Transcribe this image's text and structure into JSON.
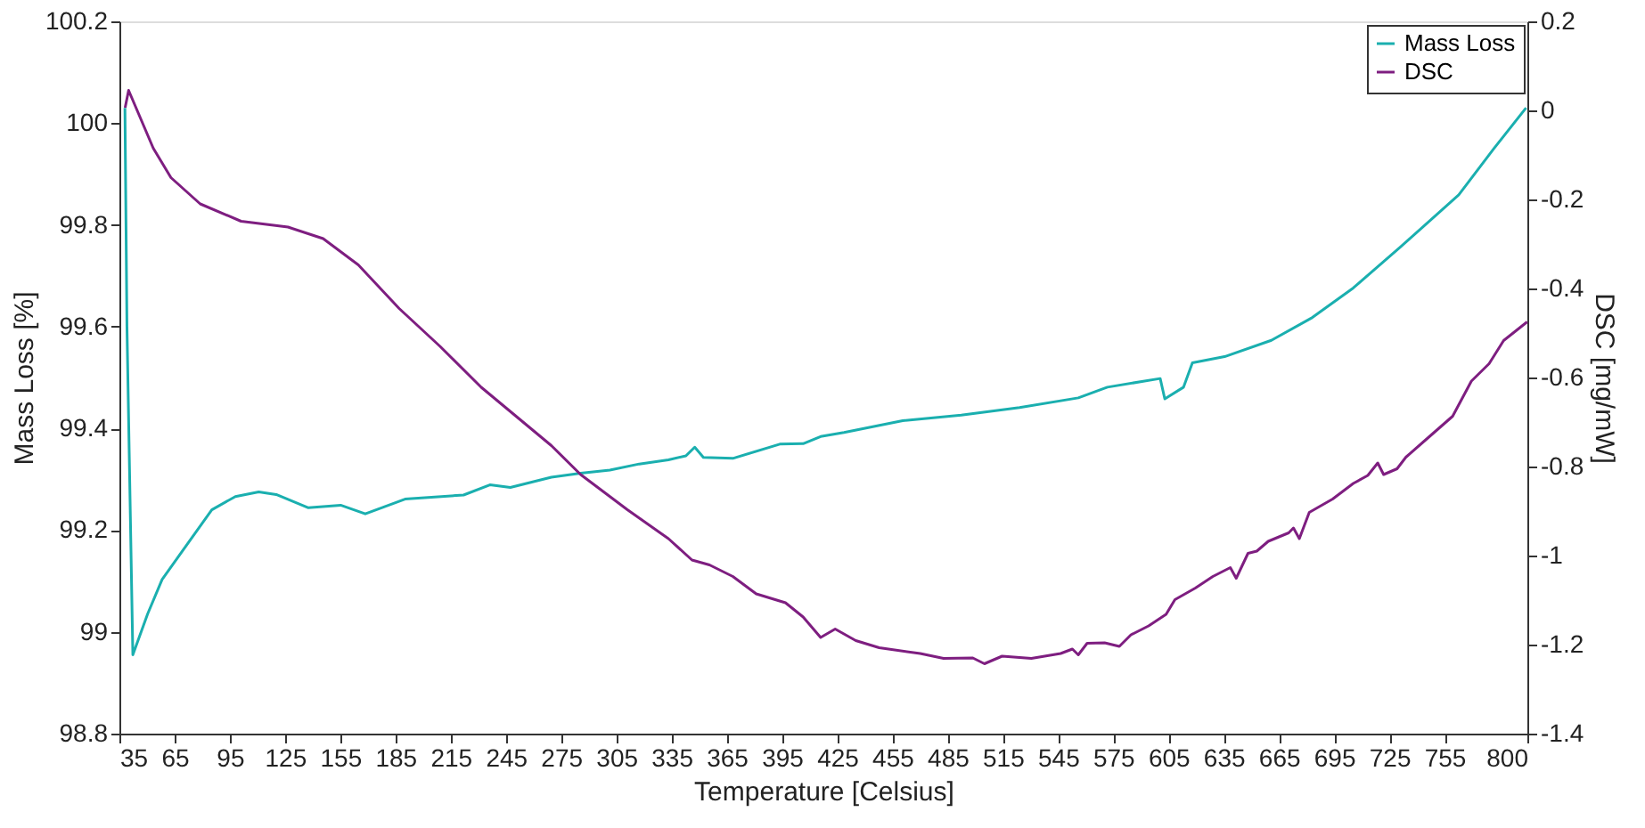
{
  "chart_data": {
    "type": "line",
    "xlabel": "Temperature [Celsius]",
    "ylabel": "Mass Loss [%]",
    "y2label": "DSC [mg/mW]",
    "xlim": [
      35,
      800
    ],
    "xticks": [
      35,
      65,
      95,
      125,
      155,
      185,
      215,
      245,
      275,
      305,
      335,
      365,
      395,
      425,
      455,
      485,
      515,
      545,
      575,
      605,
      635,
      665,
      695,
      725,
      755,
      800
    ],
    "ylim": [
      98.8,
      100.2
    ],
    "yticks": [
      98.8,
      99,
      99.2,
      99.4,
      99.6,
      99.8,
      100,
      100.2
    ],
    "y2lim": [
      -1.4,
      0.2
    ],
    "y2ticks": [
      -1.4,
      -1.2,
      -1,
      -0.8,
      -0.6,
      -0.4,
      -0.2,
      0,
      0.2
    ],
    "legend": "top right",
    "series": [
      {
        "name": "Mass Loss",
        "color": "#1aafaf",
        "axis": "y",
        "x": [
          38,
          39.1,
          42.3,
          50.3,
          58.2,
          69.4,
          85.2,
          98,
          110.7,
          120.2,
          137.7,
          155.2,
          168.6,
          190.2,
          222,
          236.3,
          247.4,
          269.7,
          285.6,
          301.5,
          317.4,
          333.3,
          342.8,
          347.6,
          352.3,
          368.3,
          393.8,
          406.5,
          416,
          428.7,
          460.6,
          492.4,
          524.1,
          556,
          571.8,
          600.5,
          603,
          613.2,
          618,
          635.5,
          660.9,
          683.2,
          705.4,
          730.9,
          762.7,
          781.8,
          799.3
        ],
        "values": [
          100.03,
          99.6,
          98.955,
          99.035,
          99.103,
          99.16,
          99.24,
          99.266,
          99.275,
          99.27,
          99.244,
          99.249,
          99.232,
          99.261,
          99.269,
          99.289,
          99.284,
          99.304,
          99.312,
          99.318,
          99.33,
          99.338,
          99.346,
          99.363,
          99.343,
          99.341,
          99.369,
          99.37,
          99.384,
          99.392,
          99.415,
          99.426,
          99.441,
          99.46,
          99.481,
          99.498,
          99.458,
          99.481,
          99.529,
          99.541,
          99.573,
          99.618,
          99.676,
          99.756,
          99.859,
          99.95,
          100.03
        ]
      },
      {
        "name": "DSC",
        "color": "#7e1e80",
        "axis": "y2",
        "x": [
          38.1,
          40,
          53.4,
          63,
          78.9,
          101.1,
          126.6,
          145.7,
          164.8,
          187,
          209.2,
          231.6,
          269.7,
          285.6,
          311,
          333.3,
          346.1,
          355.6,
          368.3,
          381,
          396.9,
          406.5,
          416,
          423.9,
          435.1,
          447.8,
          470.1,
          482.8,
          498.7,
          505,
          514.6,
          530.5,
          546.4,
          552.8,
          556,
          560.8,
          570.3,
          578.3,
          584.6,
          594.2,
          603.7,
          608.5,
          619.6,
          629.1,
          638.6,
          641.8,
          648.2,
          653,
          659.2,
          670.3,
          672.9,
          676.1,
          681.5,
          694.2,
          705.4,
          713.3,
          718.7,
          721.9,
          729.2,
          734,
          746.7,
          759.4,
          769.6,
          779.2,
          787.1,
          799.9
        ],
        "values": [
          0.006,
          0.045,
          -0.085,
          -0.151,
          -0.21,
          -0.249,
          -0.262,
          -0.288,
          -0.347,
          -0.445,
          -0.53,
          -0.622,
          -0.753,
          -0.818,
          -0.897,
          -0.962,
          -1.01,
          -1.021,
          -1.047,
          -1.086,
          -1.106,
          -1.138,
          -1.184,
          -1.165,
          -1.191,
          -1.207,
          -1.22,
          -1.231,
          -1.23,
          -1.243,
          -1.226,
          -1.231,
          -1.22,
          -1.21,
          -1.223,
          -1.197,
          -1.196,
          -1.204,
          -1.178,
          -1.158,
          -1.132,
          -1.099,
          -1.073,
          -1.047,
          -1.027,
          -1.051,
          -0.995,
          -0.99,
          -0.968,
          -0.949,
          -0.938,
          -0.962,
          -0.903,
          -0.873,
          -0.838,
          -0.82,
          -0.792,
          -0.818,
          -0.805,
          -0.779,
          -0.733,
          -0.687,
          -0.608,
          -0.569,
          -0.517,
          -0.475
        ]
      }
    ]
  }
}
